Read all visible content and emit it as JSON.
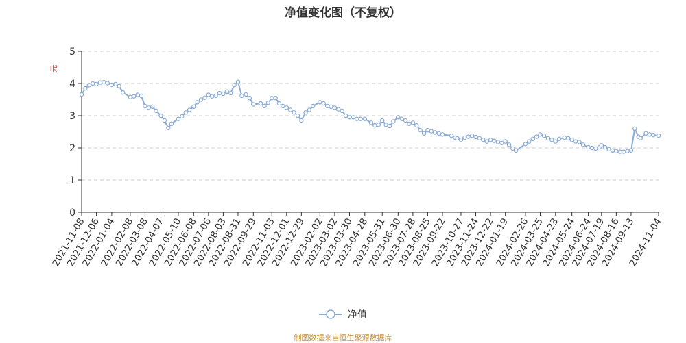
{
  "title": "净值变化图（不复权）",
  "source_text": "制图数据来自恒生聚源数据库",
  "legend": {
    "label": "净值"
  },
  "colors": {
    "line": "#8aabd6",
    "unit": "#e0463d",
    "source": "#c8913a",
    "grid": "#cccccc",
    "axis": "#333333"
  },
  "chart_data": {
    "type": "line",
    "title": "净值变化图（不复权）",
    "ylabel": "元",
    "ylim": [
      0,
      5
    ],
    "yticks": [
      0,
      1,
      2,
      3,
      4,
      5
    ],
    "grid": true,
    "legend_position": "bottom-center",
    "categories": [
      "2021-11-08",
      "2021-12-06",
      "2022-01-04",
      "2022-02-08",
      "2022-03-08",
      "2022-04-07",
      "2022-05-10",
      "2022-06-08",
      "2022-07-06",
      "2022-08-03",
      "2022-08-31",
      "2022-09-29",
      "2022-11-03",
      "2022-12-01",
      "2022-12-29",
      "2023-02-02",
      "2023-03-02",
      "2023-03-30",
      "2023-04-28",
      "2023-05-31",
      "2023-06-30",
      "2023-07-28",
      "2023-08-25",
      "2023-09-22",
      "2023-10-27",
      "2023-11-24",
      "2023-12-22",
      "2024-01-19",
      "2024-02-26",
      "2024-03-25",
      "2024-04-23",
      "2024-05-24",
      "2024-06-24",
      "2024-07-19",
      "2024-08-16",
      "2024-09-13",
      "2024-11-04"
    ],
    "series": [
      {
        "name": "净值",
        "x": [
          "2021-11-08",
          "2021-11-15",
          "2021-11-22",
          "2021-11-29",
          "2021-12-06",
          "2021-12-13",
          "2021-12-20",
          "2021-12-27",
          "2022-01-04",
          "2022-01-11",
          "2022-01-18",
          "2022-01-25",
          "2022-02-08",
          "2022-02-15",
          "2022-02-22",
          "2022-03-01",
          "2022-03-08",
          "2022-03-15",
          "2022-03-22",
          "2022-03-29",
          "2022-04-07",
          "2022-04-14",
          "2022-04-21",
          "2022-04-27",
          "2022-05-10",
          "2022-05-17",
          "2022-05-24",
          "2022-05-31",
          "2022-06-08",
          "2022-06-15",
          "2022-06-22",
          "2022-06-29",
          "2022-07-06",
          "2022-07-13",
          "2022-07-20",
          "2022-07-27",
          "2022-08-03",
          "2022-08-10",
          "2022-08-17",
          "2022-08-24",
          "2022-08-31",
          "2022-09-07",
          "2022-09-15",
          "2022-09-22",
          "2022-09-29",
          "2022-10-13",
          "2022-10-20",
          "2022-10-27",
          "2022-11-03",
          "2022-11-10",
          "2022-11-17",
          "2022-11-24",
          "2022-12-01",
          "2022-12-08",
          "2022-12-15",
          "2022-12-22",
          "2022-12-29",
          "2023-01-06",
          "2023-01-13",
          "2023-01-20",
          "2023-02-02",
          "2023-02-09",
          "2023-02-16",
          "2023-02-23",
          "2023-03-02",
          "2023-03-09",
          "2023-03-16",
          "2023-03-23",
          "2023-03-30",
          "2023-04-06",
          "2023-04-13",
          "2023-04-20",
          "2023-04-28",
          "2023-05-10",
          "2023-05-17",
          "2023-05-24",
          "2023-05-31",
          "2023-06-07",
          "2023-06-14",
          "2023-06-21",
          "2023-06-30",
          "2023-07-07",
          "2023-07-14",
          "2023-07-21",
          "2023-07-28",
          "2023-08-04",
          "2023-08-11",
          "2023-08-18",
          "2023-08-25",
          "2023-09-01",
          "2023-09-08",
          "2023-09-15",
          "2023-09-22",
          "2023-10-09",
          "2023-10-16",
          "2023-10-20",
          "2023-10-27",
          "2023-11-03",
          "2023-11-10",
          "2023-11-17",
          "2023-11-24",
          "2023-12-01",
          "2023-12-08",
          "2023-12-15",
          "2023-12-22",
          "2023-12-29",
          "2024-01-05",
          "2024-01-12",
          "2024-01-19",
          "2024-01-26",
          "2024-02-02",
          "2024-02-08",
          "2024-02-26",
          "2024-03-04",
          "2024-03-11",
          "2024-03-18",
          "2024-03-25",
          "2024-04-01",
          "2024-04-09",
          "2024-04-16",
          "2024-04-23",
          "2024-04-30",
          "2024-05-10",
          "2024-05-17",
          "2024-05-24",
          "2024-05-31",
          "2024-06-07",
          "2024-06-14",
          "2024-06-24",
          "2024-07-01",
          "2024-07-08",
          "2024-07-15",
          "2024-07-19",
          "2024-07-26",
          "2024-08-02",
          "2024-08-09",
          "2024-08-16",
          "2024-08-23",
          "2024-08-30",
          "2024-09-06",
          "2024-09-13",
          "2024-09-20",
          "2024-09-27",
          "2024-10-01",
          "2024-10-11",
          "2024-10-18",
          "2024-10-25",
          "2024-11-04"
        ],
        "values": [
          3.66,
          3.85,
          3.95,
          4.0,
          3.98,
          4.03,
          4.04,
          4.01,
          3.96,
          3.98,
          3.92,
          3.72,
          3.58,
          3.6,
          3.65,
          3.62,
          3.3,
          3.25,
          3.28,
          3.15,
          3.0,
          2.85,
          2.62,
          2.75,
          2.9,
          2.98,
          3.1,
          3.18,
          3.28,
          3.42,
          3.5,
          3.56,
          3.65,
          3.6,
          3.62,
          3.7,
          3.68,
          3.75,
          3.7,
          3.95,
          4.05,
          3.62,
          3.66,
          3.55,
          3.35,
          3.38,
          3.3,
          3.4,
          3.55,
          3.55,
          3.38,
          3.3,
          3.25,
          3.18,
          3.1,
          3.0,
          2.85,
          3.1,
          3.18,
          3.3,
          3.42,
          3.38,
          3.3,
          3.28,
          3.25,
          3.2,
          3.15,
          3.0,
          2.95,
          2.95,
          2.9,
          2.9,
          2.9,
          2.78,
          2.7,
          2.72,
          2.85,
          2.72,
          2.68,
          2.82,
          2.95,
          2.9,
          2.85,
          2.75,
          2.78,
          2.7,
          2.55,
          2.45,
          2.55,
          2.52,
          2.48,
          2.45,
          2.42,
          2.38,
          2.32,
          2.3,
          2.25,
          2.32,
          2.35,
          2.38,
          2.34,
          2.3,
          2.25,
          2.2,
          2.25,
          2.22,
          2.18,
          2.15,
          2.2,
          2.1,
          1.98,
          1.92,
          2.12,
          2.2,
          2.28,
          2.35,
          2.42,
          2.38,
          2.3,
          2.25,
          2.2,
          2.28,
          2.32,
          2.3,
          2.25,
          2.2,
          2.18,
          2.1,
          2.02,
          2.0,
          1.98,
          2.02,
          2.08,
          2.02,
          1.96,
          1.92,
          1.9,
          1.88,
          1.88,
          1.9,
          1.92,
          2.6,
          2.35,
          2.3,
          2.45,
          2.42,
          2.4,
          2.38
        ]
      }
    ]
  }
}
